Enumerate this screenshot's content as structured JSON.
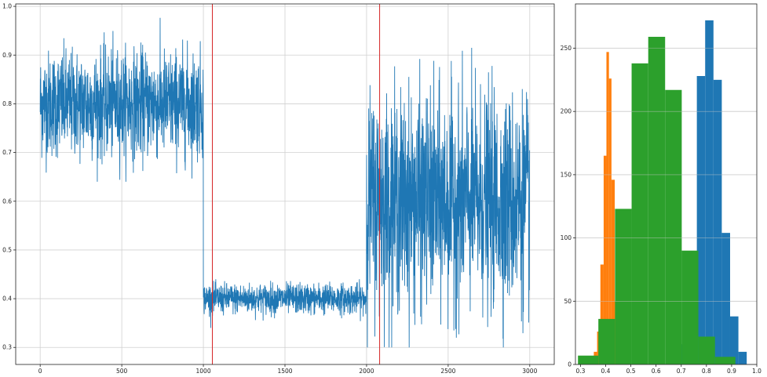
{
  "chart_data": [
    {
      "type": "line",
      "title": "",
      "xlabel": "",
      "ylabel": "",
      "xlim": [
        -150,
        3150
      ],
      "ylim": [
        0.265,
        1.005
      ],
      "grid": true,
      "xticks": [
        "0",
        "500",
        "1000",
        "1500",
        "2000",
        "2500",
        "3000"
      ],
      "yticks": [
        "0.3",
        "0.4",
        "0.5",
        "0.6",
        "0.7",
        "0.8",
        "0.9",
        "1.0"
      ],
      "vertical_lines": [
        {
          "x": 1055,
          "color": "#d62728"
        },
        {
          "x": 2080,
          "color": "#d62728"
        }
      ],
      "series": [
        {
          "color": "#1f77b4",
          "n_points": 3000,
          "segments": [
            {
              "x": [
                0,
                1000
              ],
              "mean": 0.8,
              "min": 0.64,
              "max": 0.99
            },
            {
              "x": [
                1000,
                2000
              ],
              "mean": 0.4,
              "min": 0.34,
              "max": 0.44
            },
            {
              "x": [
                2000,
                3000
              ],
              "mean": 0.6,
              "min": 0.3,
              "max": 0.99
            }
          ]
        }
      ]
    },
    {
      "type": "histogram",
      "title": "",
      "xlabel": "",
      "ylabel": "",
      "xlim": [
        0.28,
        1.0
      ],
      "ylim": [
        0,
        285
      ],
      "grid": true,
      "xticks": [
        "0.3",
        "0.4",
        "0.5",
        "0.6",
        "0.7",
        "0.8",
        "0.9",
        "1.0"
      ],
      "yticks": [
        "0",
        "50",
        "100",
        "150",
        "200",
        "250"
      ],
      "series": [
        {
          "color": "#1f77b4",
          "bins": [
            {
              "x0": 0.663,
              "x1": 0.696,
              "count": 3
            },
            {
              "x0": 0.696,
              "x1": 0.729,
              "count": 16
            },
            {
              "x0": 0.729,
              "x1": 0.762,
              "count": 50
            },
            {
              "x0": 0.762,
              "x1": 0.795,
              "count": 228
            },
            {
              "x0": 0.795,
              "x1": 0.828,
              "count": 272
            },
            {
              "x0": 0.828,
              "x1": 0.861,
              "count": 225
            },
            {
              "x0": 0.861,
              "x1": 0.894,
              "count": 104
            },
            {
              "x0": 0.894,
              "x1": 0.927,
              "count": 38
            },
            {
              "x0": 0.927,
              "x1": 0.96,
              "count": 10
            }
          ]
        },
        {
          "color": "#ff7f0e",
          "bins": [
            {
              "x0": 0.34,
              "x1": 0.353,
              "count": 3
            },
            {
              "x0": 0.353,
              "x1": 0.366,
              "count": 10
            },
            {
              "x0": 0.366,
              "x1": 0.379,
              "count": 26
            },
            {
              "x0": 0.379,
              "x1": 0.392,
              "count": 79
            },
            {
              "x0": 0.392,
              "x1": 0.403,
              "count": 165
            },
            {
              "x0": 0.403,
              "x1": 0.413,
              "count": 247
            },
            {
              "x0": 0.413,
              "x1": 0.423,
              "count": 226
            },
            {
              "x0": 0.423,
              "x1": 0.436,
              "count": 146
            },
            {
              "x0": 0.436,
              "x1": 0.449,
              "count": 50
            }
          ]
        },
        {
          "color": "#2ca02c",
          "bins": [
            {
              "x0": 0.29,
              "x1": 0.371,
              "count": 7
            },
            {
              "x0": 0.371,
              "x1": 0.437,
              "count": 36
            },
            {
              "x0": 0.437,
              "x1": 0.503,
              "count": 123
            },
            {
              "x0": 0.503,
              "x1": 0.569,
              "count": 238
            },
            {
              "x0": 0.569,
              "x1": 0.636,
              "count": 259
            },
            {
              "x0": 0.636,
              "x1": 0.702,
              "count": 217
            },
            {
              "x0": 0.702,
              "x1": 0.768,
              "count": 90
            },
            {
              "x0": 0.768,
              "x1": 0.834,
              "count": 22
            },
            {
              "x0": 0.834,
              "x1": 0.915,
              "count": 6
            }
          ]
        }
      ]
    }
  ]
}
